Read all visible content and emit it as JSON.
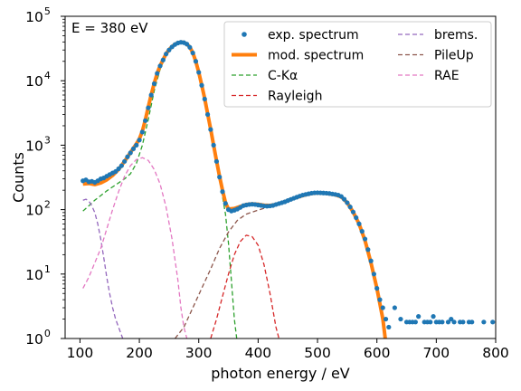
{
  "chart_data": {
    "type": "scatter",
    "title": "",
    "annotation": "E = 380 eV",
    "xlabel": "photon energy / eV",
    "ylabel": "Counts",
    "xlim": [
      75,
      800
    ],
    "ylim": [
      1,
      100000
    ],
    "yscale": "log",
    "grid": false,
    "legend_position": "top-right",
    "xticks": [
      100,
      200,
      300,
      400,
      500,
      600,
      700,
      800
    ],
    "xtick_labels": [
      "100",
      "200",
      "300",
      "400",
      "500",
      "600",
      "700",
      "800"
    ],
    "ytick_exponents": [
      0,
      1,
      2,
      3,
      4,
      5
    ],
    "ytick_base": "10",
    "legend": [
      {
        "label": "exp. spectrum",
        "color": "#1f77b4",
        "style": "dot"
      },
      {
        "label": "mod. spectrum",
        "color": "#ff7f0e",
        "style": "thick"
      },
      {
        "label": "C-Kα",
        "color": "#2ca02c",
        "style": "dashed"
      },
      {
        "label": "Rayleigh",
        "color": "#d62728",
        "style": "dashed"
      },
      {
        "label": "brems.",
        "color": "#9467bd",
        "style": "dashed"
      },
      {
        "label": "PileUp",
        "color": "#8c564b",
        "style": "dashed"
      },
      {
        "label": "RAE",
        "color": "#e377c2",
        "style": "dashed"
      }
    ],
    "series": [
      {
        "name": "exp. spectrum",
        "kind": "scatter",
        "color": "#1f77b4",
        "points": [
          [
            105,
            280
          ],
          [
            110,
            290
          ],
          [
            115,
            270
          ],
          [
            120,
            275
          ],
          [
            125,
            265
          ],
          [
            130,
            280
          ],
          [
            135,
            300
          ],
          [
            140,
            310
          ],
          [
            145,
            330
          ],
          [
            150,
            350
          ],
          [
            155,
            370
          ],
          [
            160,
            390
          ],
          [
            165,
            430
          ],
          [
            170,
            480
          ],
          [
            175,
            560
          ],
          [
            180,
            660
          ],
          [
            185,
            760
          ],
          [
            190,
            880
          ],
          [
            195,
            1000
          ],
          [
            200,
            1200
          ],
          [
            205,
            1600
          ],
          [
            210,
            2400
          ],
          [
            215,
            3800
          ],
          [
            220,
            6000
          ],
          [
            225,
            9000
          ],
          [
            230,
            13000
          ],
          [
            235,
            17000
          ],
          [
            240,
            21000
          ],
          [
            245,
            26000
          ],
          [
            250,
            30000
          ],
          [
            255,
            33500
          ],
          [
            260,
            36500
          ],
          [
            265,
            38500
          ],
          [
            270,
            39500
          ],
          [
            275,
            39000
          ],
          [
            280,
            37000
          ],
          [
            285,
            33000
          ],
          [
            290,
            27000
          ],
          [
            295,
            20000
          ],
          [
            300,
            13500
          ],
          [
            305,
            8500
          ],
          [
            310,
            5200
          ],
          [
            315,
            3000
          ],
          [
            320,
            1750
          ],
          [
            325,
            1000
          ],
          [
            330,
            560
          ],
          [
            335,
            320
          ],
          [
            340,
            190
          ],
          [
            345,
            125
          ],
          [
            350,
            100
          ],
          [
            355,
            95
          ],
          [
            360,
            98
          ],
          [
            365,
            102
          ],
          [
            370,
            108
          ],
          [
            375,
            115
          ],
          [
            380,
            118
          ],
          [
            385,
            120
          ],
          [
            390,
            121
          ],
          [
            395,
            120
          ],
          [
            400,
            118
          ],
          [
            405,
            116
          ],
          [
            410,
            114
          ],
          [
            415,
            113
          ],
          [
            420,
            114
          ],
          [
            425,
            116
          ],
          [
            430,
            120
          ],
          [
            435,
            124
          ],
          [
            440,
            128
          ],
          [
            445,
            132
          ],
          [
            450,
            138
          ],
          [
            455,
            144
          ],
          [
            460,
            150
          ],
          [
            465,
            156
          ],
          [
            470,
            162
          ],
          [
            475,
            168
          ],
          [
            480,
            172
          ],
          [
            485,
            176
          ],
          [
            490,
            180
          ],
          [
            495,
            182
          ],
          [
            500,
            183
          ],
          [
            505,
            182
          ],
          [
            510,
            181
          ],
          [
            515,
            180
          ],
          [
            520,
            178
          ],
          [
            525,
            175
          ],
          [
            530,
            172
          ],
          [
            535,
            168
          ],
          [
            540,
            160
          ],
          [
            545,
            145
          ],
          [
            550,
            128
          ],
          [
            555,
            110
          ],
          [
            560,
            92
          ],
          [
            565,
            75
          ],
          [
            570,
            60
          ],
          [
            575,
            46
          ],
          [
            580,
            35
          ],
          [
            585,
            24
          ],
          [
            590,
            16
          ],
          [
            595,
            10
          ],
          [
            600,
            6
          ],
          [
            605,
            4
          ],
          [
            610,
            3
          ],
          [
            615,
            2
          ],
          [
            620,
            1.5
          ],
          [
            630,
            3
          ],
          [
            640,
            2
          ],
          [
            650,
            1.8
          ],
          [
            655,
            1.8
          ],
          [
            660,
            1.8
          ],
          [
            665,
            1.8
          ],
          [
            670,
            2.2
          ],
          [
            680,
            1.8
          ],
          [
            685,
            1.8
          ],
          [
            690,
            1.8
          ],
          [
            695,
            2.2
          ],
          [
            700,
            1.8
          ],
          [
            705,
            1.8
          ],
          [
            710,
            1.8
          ],
          [
            720,
            1.8
          ],
          [
            725,
            2
          ],
          [
            730,
            1.8
          ],
          [
            740,
            1.8
          ],
          [
            745,
            1.8
          ],
          [
            755,
            1.8
          ],
          [
            760,
            1.8
          ],
          [
            780,
            1.8
          ],
          [
            795,
            1.8
          ]
        ]
      },
      {
        "name": "mod. spectrum",
        "kind": "line",
        "color": "#ff7f0e",
        "width": 4,
        "points": [
          [
            105,
            250
          ],
          [
            115,
            255
          ],
          [
            125,
            245
          ],
          [
            135,
            260
          ],
          [
            145,
            290
          ],
          [
            155,
            340
          ],
          [
            165,
            420
          ],
          [
            175,
            560
          ],
          [
            185,
            770
          ],
          [
            195,
            1050
          ],
          [
            200,
            1250
          ],
          [
            205,
            1650
          ],
          [
            210,
            2450
          ],
          [
            215,
            3900
          ],
          [
            220,
            6100
          ],
          [
            225,
            9100
          ],
          [
            230,
            13100
          ],
          [
            235,
            17100
          ],
          [
            240,
            21200
          ],
          [
            245,
            26200
          ],
          [
            250,
            30300
          ],
          [
            255,
            33800
          ],
          [
            260,
            36800
          ],
          [
            265,
            38800
          ],
          [
            270,
            39800
          ],
          [
            275,
            39300
          ],
          [
            280,
            37200
          ],
          [
            285,
            33200
          ],
          [
            290,
            27100
          ],
          [
            295,
            20100
          ],
          [
            300,
            13600
          ],
          [
            305,
            8600
          ],
          [
            310,
            5300
          ],
          [
            315,
            3050
          ],
          [
            320,
            1780
          ],
          [
            325,
            1010
          ],
          [
            330,
            570
          ],
          [
            335,
            330
          ],
          [
            340,
            200
          ],
          [
            345,
            128
          ],
          [
            350,
            102
          ],
          [
            360,
            104
          ],
          [
            370,
            112
          ],
          [
            380,
            120
          ],
          [
            390,
            123
          ],
          [
            400,
            121
          ],
          [
            410,
            117
          ],
          [
            420,
            116
          ],
          [
            430,
            120
          ],
          [
            440,
            128
          ],
          [
            450,
            138
          ],
          [
            460,
            150
          ],
          [
            470,
            160
          ],
          [
            480,
            170
          ],
          [
            490,
            178
          ],
          [
            500,
            182
          ],
          [
            510,
            181
          ],
          [
            520,
            176
          ],
          [
            530,
            170
          ],
          [
            540,
            158
          ],
          [
            550,
            128
          ],
          [
            560,
            92
          ],
          [
            570,
            60
          ],
          [
            580,
            33
          ],
          [
            590,
            15
          ],
          [
            600,
            6
          ],
          [
            610,
            2
          ],
          [
            614,
            1
          ]
        ]
      },
      {
        "name": "C-Kα",
        "kind": "line",
        "color": "#2ca02c",
        "dashed": true,
        "points": [
          [
            105,
            95
          ],
          [
            115,
            115
          ],
          [
            125,
            140
          ],
          [
            135,
            165
          ],
          [
            145,
            195
          ],
          [
            155,
            225
          ],
          [
            165,
            260
          ],
          [
            175,
            300
          ],
          [
            185,
            360
          ],
          [
            195,
            520
          ],
          [
            205,
            1000
          ],
          [
            215,
            2500
          ],
          [
            225,
            7000
          ],
          [
            235,
            15000
          ],
          [
            245,
            25000
          ],
          [
            255,
            33000
          ],
          [
            265,
            38500
          ],
          [
            275,
            38500
          ],
          [
            285,
            32500
          ],
          [
            295,
            19500
          ],
          [
            305,
            8300
          ],
          [
            315,
            2900
          ],
          [
            325,
            960
          ],
          [
            335,
            300
          ],
          [
            345,
            85
          ],
          [
            350,
            30
          ],
          [
            355,
            8
          ],
          [
            360,
            2
          ],
          [
            364,
            1
          ]
        ]
      },
      {
        "name": "Rayleigh",
        "kind": "line",
        "color": "#d62728",
        "dashed": true,
        "points": [
          [
            320,
            1
          ],
          [
            330,
            2
          ],
          [
            340,
            4.5
          ],
          [
            350,
            10
          ],
          [
            360,
            20
          ],
          [
            370,
            32
          ],
          [
            380,
            40
          ],
          [
            390,
            38
          ],
          [
            400,
            28
          ],
          [
            410,
            14
          ],
          [
            420,
            5
          ],
          [
            430,
            1.5
          ],
          [
            435,
            1
          ]
        ]
      },
      {
        "name": "brems.",
        "kind": "line",
        "color": "#9467bd",
        "dashed": true,
        "points": [
          [
            105,
            140
          ],
          [
            110,
            145
          ],
          [
            115,
            135
          ],
          [
            120,
            115
          ],
          [
            125,
            90
          ],
          [
            130,
            60
          ],
          [
            135,
            35
          ],
          [
            140,
            18
          ],
          [
            145,
            9
          ],
          [
            150,
            5
          ],
          [
            155,
            3
          ],
          [
            160,
            2
          ],
          [
            165,
            1.5
          ],
          [
            172,
            1
          ]
        ]
      },
      {
        "name": "PileUp",
        "kind": "line",
        "color": "#8c564b",
        "dashed": true,
        "points": [
          [
            260,
            1
          ],
          [
            275,
            1.5
          ],
          [
            290,
            3
          ],
          [
            305,
            6
          ],
          [
            320,
            12
          ],
          [
            335,
            25
          ],
          [
            350,
            45
          ],
          [
            365,
            68
          ],
          [
            380,
            85
          ],
          [
            395,
            95
          ],
          [
            410,
            105
          ],
          [
            430,
            118
          ],
          [
            450,
            135
          ],
          [
            470,
            158
          ],
          [
            490,
            175
          ],
          [
            500,
            180
          ],
          [
            510,
            180
          ],
          [
            520,
            176
          ],
          [
            530,
            170
          ],
          [
            540,
            156
          ],
          [
            550,
            128
          ],
          [
            560,
            92
          ],
          [
            570,
            60
          ],
          [
            580,
            33
          ],
          [
            590,
            15
          ],
          [
            600,
            6
          ],
          [
            610,
            2
          ],
          [
            614,
            1
          ]
        ]
      },
      {
        "name": "RAE",
        "kind": "line",
        "color": "#e377c2",
        "dashed": true,
        "points": [
          [
            105,
            6
          ],
          [
            115,
            9
          ],
          [
            125,
            15
          ],
          [
            135,
            25
          ],
          [
            145,
            50
          ],
          [
            155,
            100
          ],
          [
            165,
            190
          ],
          [
            175,
            330
          ],
          [
            185,
            480
          ],
          [
            195,
            600
          ],
          [
            205,
            640
          ],
          [
            215,
            580
          ],
          [
            225,
            420
          ],
          [
            235,
            250
          ],
          [
            245,
            110
          ],
          [
            255,
            35
          ],
          [
            265,
            8
          ],
          [
            270,
            3
          ],
          [
            275,
            1.5
          ],
          [
            280,
            1
          ]
        ]
      }
    ]
  }
}
